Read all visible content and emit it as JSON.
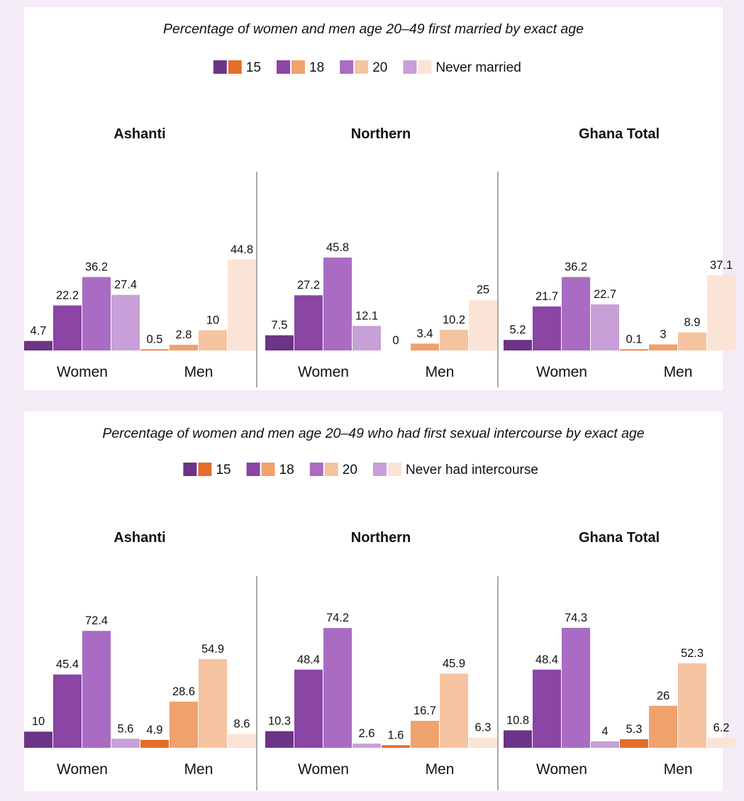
{
  "colors": {
    "women": [
      "#6b3486",
      "#8a45a5",
      "#a96cc2",
      "#c6a0d6"
    ],
    "men": [
      "#e46d2a",
      "#efa26d",
      "#f5c3a0",
      "#fae4d6"
    ],
    "background": "#f3ebf6"
  },
  "chart_data": [
    {
      "type": "bar",
      "title": "Percentage of women and men age 20–49 first married by exact age",
      "legend": [
        "15",
        "18",
        "20",
        "Never married"
      ],
      "legend_placement": "top",
      "categories": [
        "Women",
        "Men"
      ],
      "ylim": [
        0,
        55
      ],
      "grid": false,
      "groups": [
        {
          "name": "Ashanti",
          "women": [
            4.7,
            22.2,
            36.2,
            27.4
          ],
          "men": [
            0.5,
            2.8,
            10,
            44.8
          ]
        },
        {
          "name": "Northern",
          "women": [
            7.5,
            27.2,
            45.8,
            12.1
          ],
          "men": [
            0,
            3.4,
            10.2,
            25
          ]
        },
        {
          "name": "Ghana Total",
          "women": [
            5.2,
            21.7,
            36.2,
            22.7
          ],
          "men": [
            0.1,
            3,
            8.9,
            37.1
          ]
        }
      ]
    },
    {
      "type": "bar",
      "title": "Percentage of women and men age 20–49 who had first sexual intercourse by exact age",
      "legend": [
        "15",
        "18",
        "20",
        "Never had intercourse"
      ],
      "legend_placement": "top",
      "categories": [
        "Women",
        "Men"
      ],
      "ylim": [
        0,
        95
      ],
      "grid": false,
      "groups": [
        {
          "name": "Ashanti",
          "women": [
            10,
            45.4,
            72.4,
            5.6
          ],
          "men": [
            4.9,
            28.6,
            54.9,
            8.6
          ]
        },
        {
          "name": "Northern",
          "women": [
            10.3,
            48.4,
            74.2,
            2.6
          ],
          "men": [
            1.6,
            16.7,
            45.9,
            6.3
          ]
        },
        {
          "name": "Ghana Total",
          "women": [
            10.8,
            48.4,
            74.3,
            4
          ],
          "men": [
            5.3,
            26,
            52.3,
            6.2
          ]
        }
      ]
    }
  ]
}
